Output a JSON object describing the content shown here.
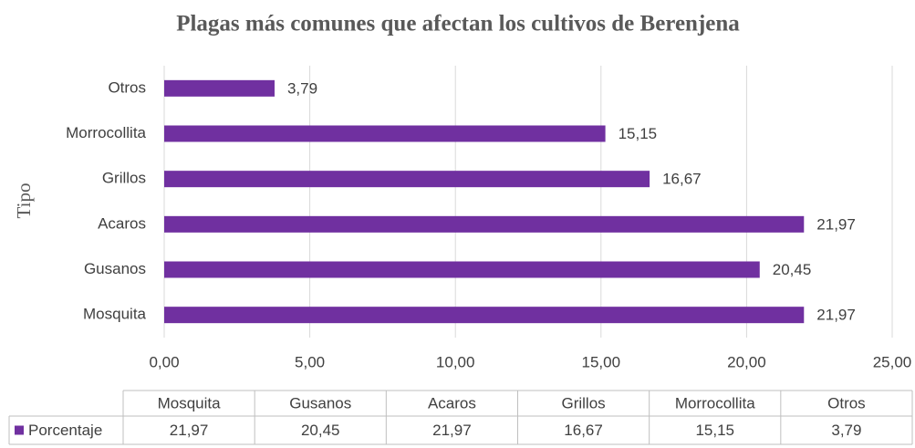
{
  "chart_data": {
    "type": "bar",
    "orientation": "horizontal",
    "title": "Plagas más comunes que afectan los cultivos de Berenjena",
    "y_label": "Tipo",
    "categories": [
      "Mosquita",
      "Gusanos",
      "Acaros",
      "Grillos",
      "Morrocollita",
      "Otros"
    ],
    "series": [
      {
        "name": "Porcentaje",
        "color": "#7030a0",
        "values": [
          21.97,
          20.45,
          21.97,
          16.67,
          15.15,
          3.79
        ],
        "value_labels": [
          "21,97",
          "20,45",
          "21,97",
          "16,67",
          "15,15",
          "3,79"
        ]
      }
    ],
    "xlim": [
      0,
      25
    ],
    "xticks": [
      {
        "value": 0,
        "label": "0,00"
      },
      {
        "value": 5,
        "label": "5,00"
      },
      {
        "value": 10,
        "label": "10,00"
      },
      {
        "value": 15,
        "label": "15,00"
      },
      {
        "value": 20,
        "label": "20,00"
      },
      {
        "value": 25,
        "label": "25,00"
      }
    ],
    "grid": true,
    "data_table": true
  }
}
